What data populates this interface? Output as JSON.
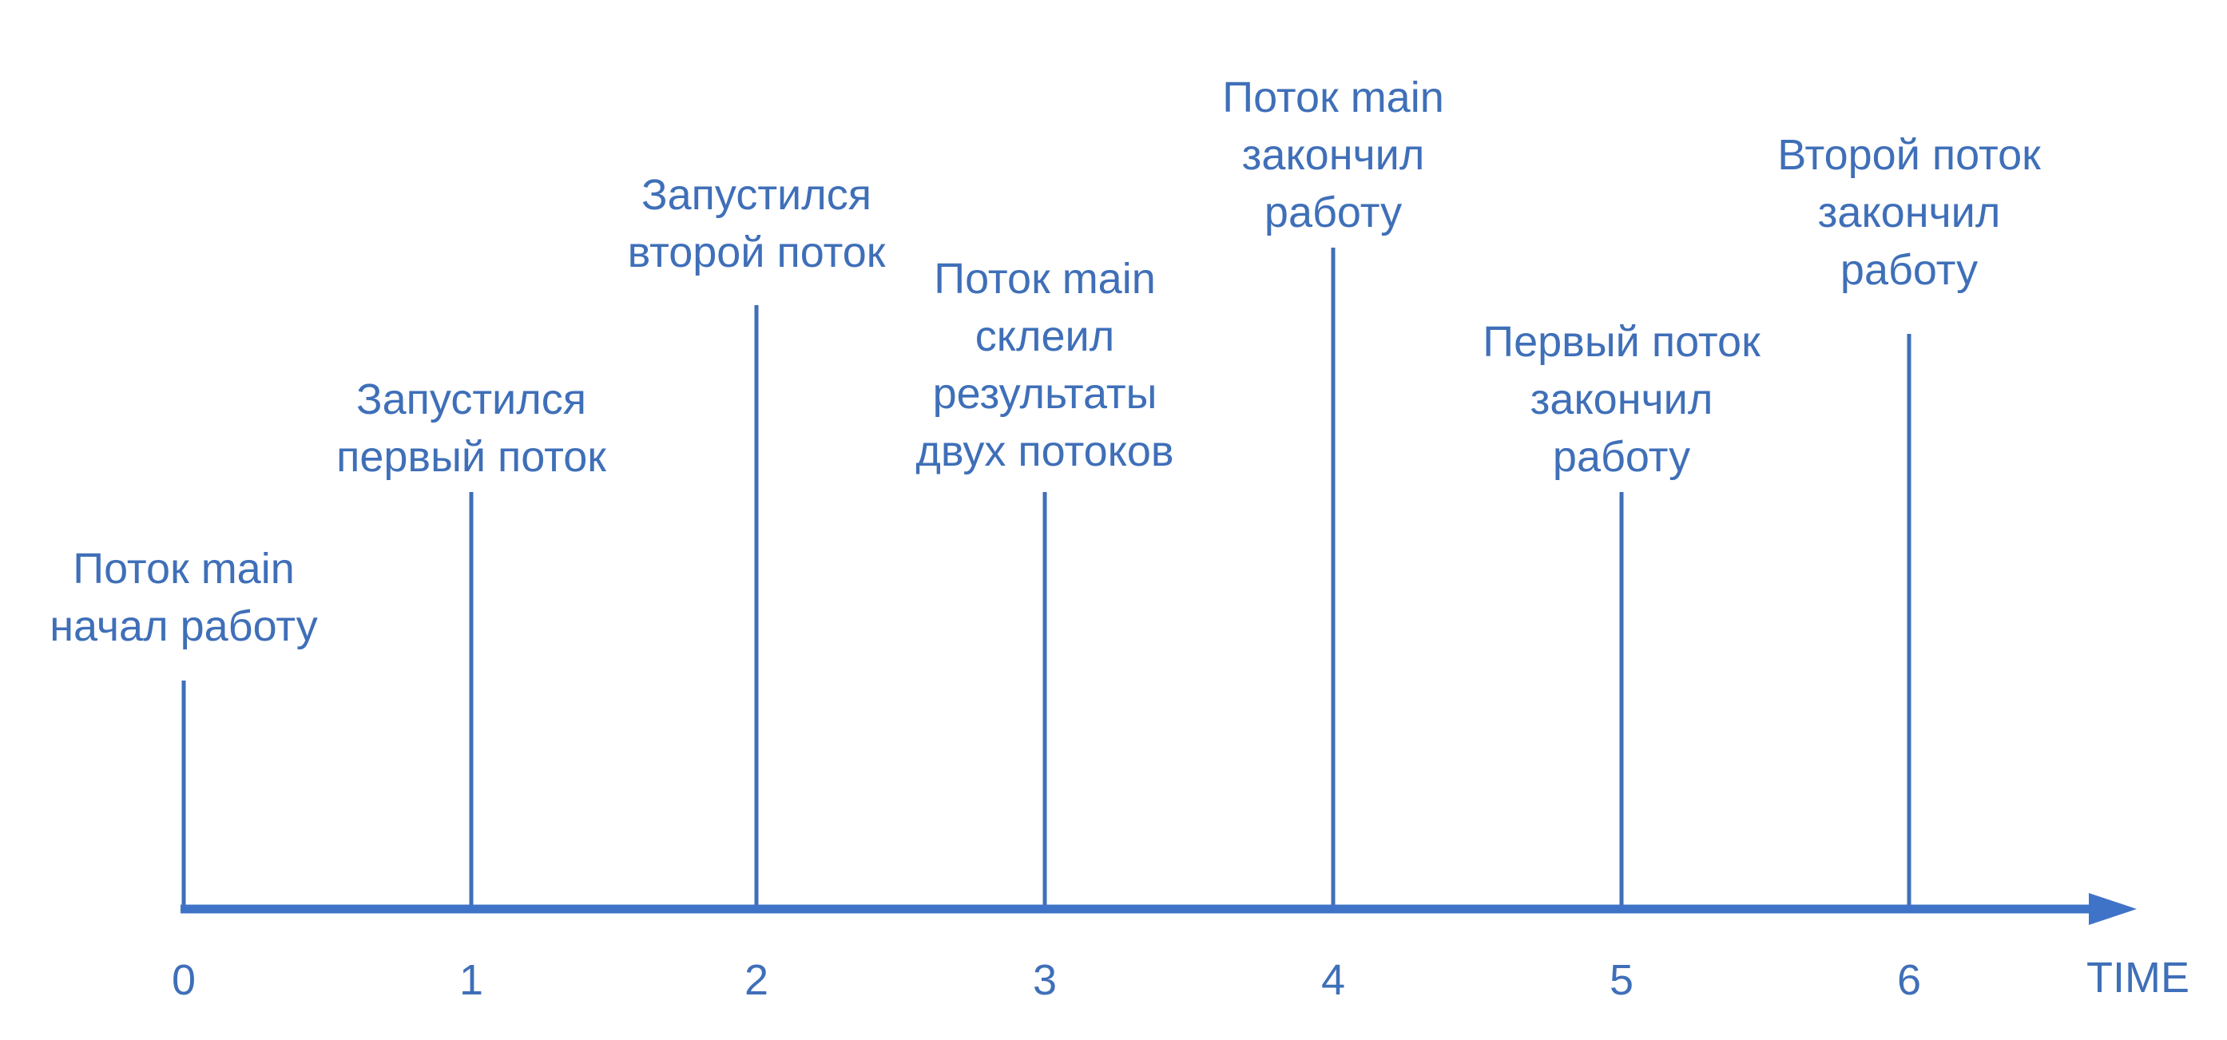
{
  "axis": {
    "label": "TIME",
    "color": "#3f73c7"
  },
  "text_color": "#3f6fb8",
  "events": [
    {
      "t": "0",
      "lines": [
        "Поток main",
        "начал работу"
      ]
    },
    {
      "t": "1",
      "lines": [
        "Запустился",
        "первый поток"
      ]
    },
    {
      "t": "2",
      "lines": [
        "Запустился",
        "второй поток"
      ]
    },
    {
      "t": "3",
      "lines": [
        "Поток main",
        "склеил",
        "результаты",
        "двух потоков"
      ]
    },
    {
      "t": "4",
      "lines": [
        "Поток main",
        "закончил",
        "работу"
      ]
    },
    {
      "t": "5",
      "lines": [
        "Первый поток",
        "закончил",
        "работу"
      ]
    },
    {
      "t": "6",
      "lines": [
        "Второй поток",
        "закончил",
        "работу"
      ]
    }
  ]
}
